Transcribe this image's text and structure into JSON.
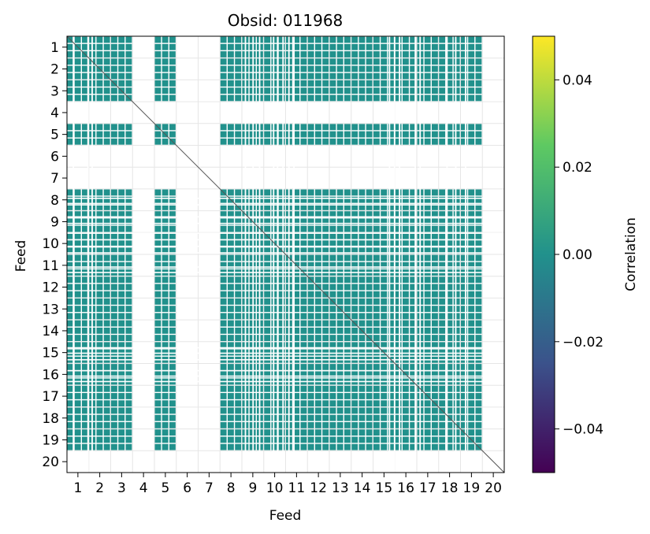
{
  "chart_data": {
    "type": "heatmap",
    "title": "Obsid: 011968",
    "xlabel": "Feed",
    "ylabel": "Feed",
    "feeds": [
      "1",
      "2",
      "3",
      "4",
      "5",
      "6",
      "7",
      "8",
      "9",
      "10",
      "11",
      "12",
      "13",
      "14",
      "15",
      "16",
      "17",
      "18",
      "19",
      "20"
    ],
    "x_tick_labels": [
      "1",
      "2",
      "3",
      "4",
      "5",
      "6",
      "7",
      "8",
      "9",
      "10",
      "11",
      "12",
      "13",
      "14",
      "15",
      "16",
      "17",
      "18",
      "19",
      "20"
    ],
    "y_tick_labels": [
      "1",
      "2",
      "3",
      "4",
      "5",
      "6",
      "7",
      "8",
      "9",
      "10",
      "11",
      "12",
      "13",
      "14",
      "15",
      "16",
      "17",
      "18",
      "19",
      "20"
    ],
    "inactive_feeds": [
      4,
      6,
      7,
      20
    ],
    "value_range": [
      -0.05,
      0.05
    ],
    "typical_value": 0.0,
    "colormap": "viridis",
    "colormap_stops": [
      "#440154",
      "#3b528b",
      "#21918c",
      "#5ec962",
      "#fde725"
    ],
    "cell_color": "#21918c",
    "diagonal_color": "#555555",
    "colorbar": {
      "label": "Correlation",
      "tick_values": [
        -0.04,
        -0.02,
        0.0,
        0.02,
        0.04
      ],
      "tick_labels": [
        "−0.04",
        "−0.02",
        "0.00",
        "0.02",
        "0.04"
      ]
    }
  }
}
